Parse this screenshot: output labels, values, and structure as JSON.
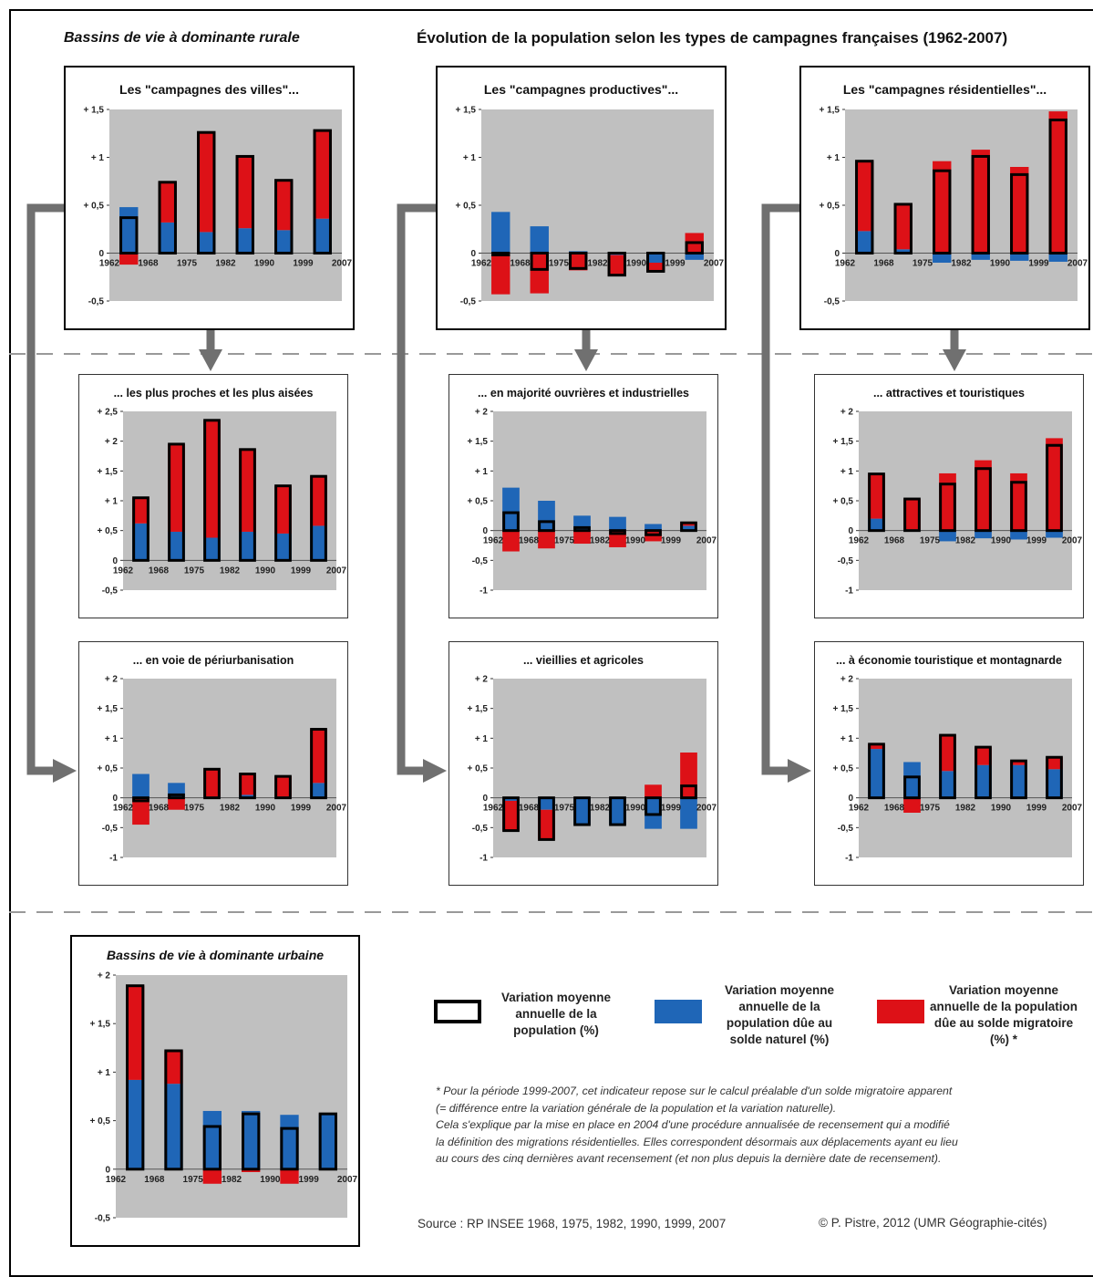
{
  "header": {
    "left": "Bassins de vie à dominante rurale",
    "center": "Évolution de la population selon les types de campagnes françaises (1962-2007)"
  },
  "colors": {
    "total_outline": "#000000",
    "naturel": "#1f66b7",
    "migratoire": "#dd1117",
    "plot_bg": "#c0c0c0"
  },
  "legend": {
    "total": "Variation moyenne annuelle de la population (%)",
    "naturel": "Variation moyenne annuelle de la population dûe au solde naturel (%)",
    "migratoire": "Variation moyenne annuelle de la population dûe au solde migratoire (%) *"
  },
  "note": [
    "* Pour la période 1999-2007, cet indicateur repose sur le calcul préalable d'un solde migratoire apparent",
    "(= différence entre la variation générale de la population et la variation naturelle).",
    "Cela s'explique par la mise en place en 2004 d'une procédure annualisée de recensement qui a modifié",
    "la définition des migrations résidentielles. Elles correspondent désormais aux déplacements ayant eu lieu",
    "au cours des cinq dernières avant recensement (et non plus depuis la dernière date de recensement)."
  ],
  "source": "Source : RP INSEE 1968, 1975, 1982, 1990, 1999, 2007",
  "credit": "© P. Pistre, 2012 (UMR Géographie-cités)",
  "chart_data": [
    {
      "type": "bar",
      "title": "Les \"campagnes des villes\"...",
      "x_labels": [
        "1962",
        "1968",
        "1975",
        "1982",
        "1990",
        "1999",
        "2007"
      ],
      "yticks": [
        "+ 1,5",
        "+ 1",
        "+ 0,5",
        "0",
        "-0,5"
      ],
      "ylim": [
        -0.5,
        1.5
      ],
      "series": [
        {
          "name": "Variation moyenne annuelle de la population (%)",
          "values": [
            0.37,
            0.74,
            1.26,
            1.01,
            0.76,
            1.28
          ]
        },
        {
          "name": "Variation moyenne annuelle de la population dûe au solde naturel (%)",
          "values": [
            0.48,
            0.32,
            0.22,
            0.26,
            0.24,
            0.36
          ]
        },
        {
          "name": "Variation moyenne annuelle de la population dûe au solde migratoire (%) *",
          "values": [
            -0.12,
            0.42,
            1.04,
            0.75,
            0.52,
            0.92
          ]
        }
      ]
    },
    {
      "type": "bar",
      "title": "Les \"campagnes productives\"...",
      "x_labels": [
        "1962",
        "1968",
        "1975",
        "1982",
        "1990",
        "1999",
        "2007"
      ],
      "yticks": [
        "+ 1,5",
        "+ 1",
        "+ 0,5",
        "0",
        "-0,5"
      ],
      "ylim": [
        -0.5,
        1.5
      ],
      "series": [
        {
          "name": "Variation moyenne annuelle de la population (%)",
          "values": [
            0.0,
            -0.17,
            -0.16,
            -0.23,
            -0.19,
            0.11
          ]
        },
        {
          "name": "Variation moyenne annuelle de la population dûe au solde naturel (%)",
          "values": [
            0.43,
            0.28,
            0.02,
            -0.02,
            -0.1,
            -0.07
          ]
        },
        {
          "name": "Variation moyenne annuelle de la population dûe au solde migratoire (%) *",
          "values": [
            -0.43,
            -0.42,
            -0.18,
            -0.21,
            -0.09,
            0.21
          ]
        }
      ]
    },
    {
      "type": "bar",
      "title": "Les \"campagnes résidentielles\"...",
      "x_labels": [
        "1962",
        "1968",
        "1975",
        "1982",
        "1990",
        "1999",
        "2007"
      ],
      "yticks": [
        "+ 1,5",
        "+ 1",
        "+ 0,5",
        "0",
        "-0,5"
      ],
      "ylim": [
        -0.5,
        1.5
      ],
      "series": [
        {
          "name": "Variation moyenne annuelle de la population (%)",
          "values": [
            0.96,
            0.51,
            0.86,
            1.01,
            0.82,
            1.39
          ]
        },
        {
          "name": "Variation moyenne annuelle de la population dûe au solde naturel (%)",
          "values": [
            0.23,
            0.04,
            -0.1,
            -0.07,
            -0.08,
            -0.09
          ]
        },
        {
          "name": "Variation moyenne annuelle de la population dûe au solde migratoire (%) *",
          "values": [
            0.73,
            0.47,
            0.96,
            1.08,
            0.9,
            1.48
          ]
        }
      ]
    },
    {
      "type": "bar",
      "title": "... les plus proches et les plus aisées",
      "x_labels": [
        "1962",
        "1968",
        "1975",
        "1982",
        "1990",
        "1999",
        "2007"
      ],
      "yticks": [
        "+ 2,5",
        "+ 2",
        "+ 1,5",
        "+ 1",
        "+ 0,5",
        "0",
        "-0,5"
      ],
      "ylim": [
        -0.5,
        2.5
      ],
      "series": [
        {
          "name": "Variation moyenne annuelle de la population (%)",
          "values": [
            1.05,
            1.95,
            2.35,
            1.86,
            1.25,
            1.41
          ]
        },
        {
          "name": "Variation moyenne annuelle de la population dûe au solde naturel (%)",
          "values": [
            0.62,
            0.48,
            0.38,
            0.48,
            0.45,
            0.58
          ]
        },
        {
          "name": "Variation moyenne annuelle de la population dûe au solde migratoire (%) *",
          "values": [
            0.43,
            1.47,
            1.97,
            1.38,
            0.8,
            0.83
          ]
        }
      ]
    },
    {
      "type": "bar",
      "title": "... en majorité ouvrières et industrielles",
      "x_labels": [
        "1962",
        "1968",
        "1975",
        "1982",
        "1990",
        "1999",
        "2007"
      ],
      "yticks": [
        "+ 2",
        "+ 1,5",
        "+ 1",
        "+ 0,5",
        "0",
        "-0,5",
        "-1"
      ],
      "ylim": [
        -1,
        2
      ],
      "series": [
        {
          "name": "Variation moyenne annuelle de la population (%)",
          "values": [
            0.3,
            0.15,
            0.05,
            -0.05,
            -0.07,
            0.13
          ]
        },
        {
          "name": "Variation moyenne annuelle de la population dûe au solde naturel (%)",
          "values": [
            0.72,
            0.5,
            0.25,
            0.23,
            0.11,
            0.08
          ]
        },
        {
          "name": "Variation moyenne annuelle de la population dûe au solde migratoire (%) *",
          "values": [
            -0.35,
            -0.3,
            -0.22,
            -0.28,
            -0.18,
            0.05
          ]
        }
      ]
    },
    {
      "type": "bar",
      "title": "... attractives et touristiques",
      "x_labels": [
        "1962",
        "1968",
        "1975",
        "1982",
        "1990",
        "1999",
        "2007"
      ],
      "yticks": [
        "+ 2",
        "+ 1,5",
        "+ 1",
        "+ 0,5",
        "0",
        "-0,5",
        "-1"
      ],
      "ylim": [
        -1,
        2
      ],
      "series": [
        {
          "name": "Variation moyenne annuelle de la population (%)",
          "values": [
            0.95,
            0.53,
            0.78,
            1.04,
            0.81,
            1.43
          ]
        },
        {
          "name": "Variation moyenne annuelle de la population dûe au solde naturel (%)",
          "values": [
            0.2,
            0.02,
            -0.18,
            -0.13,
            -0.15,
            -0.12
          ]
        },
        {
          "name": "Variation moyenne annuelle de la population dûe au solde migratoire (%) *",
          "values": [
            0.75,
            0.51,
            0.96,
            1.18,
            0.96,
            1.55
          ]
        }
      ]
    },
    {
      "type": "bar",
      "title": "... en voie de périurbanisation",
      "x_labels": [
        "1962",
        "1968",
        "1975",
        "1982",
        "1990",
        "1999",
        "2007"
      ],
      "yticks": [
        "+ 2",
        "+ 1,5",
        "+ 1",
        "+ 0,5",
        "0",
        "-0,5",
        "-1"
      ],
      "ylim": [
        -1,
        2
      ],
      "series": [
        {
          "name": "Variation moyenne annuelle de la population (%)",
          "values": [
            -0.05,
            0.05,
            0.48,
            0.4,
            0.36,
            1.15
          ]
        },
        {
          "name": "Variation moyenne annuelle de la population dûe au solde naturel (%)",
          "values": [
            0.4,
            0.25,
            0.02,
            0.05,
            0.02,
            0.25
          ]
        },
        {
          "name": "Variation moyenne annuelle de la population dûe au solde migratoire (%) *",
          "values": [
            -0.45,
            -0.2,
            0.46,
            0.35,
            0.34,
            0.9
          ]
        }
      ]
    },
    {
      "type": "bar",
      "title": "... vieillies et agricoles",
      "x_labels": [
        "1962",
        "1968",
        "1975",
        "1982",
        "1990",
        "1999",
        "2007"
      ],
      "yticks": [
        "+ 2",
        "+ 1,5",
        "+ 1",
        "+ 0,5",
        "0",
        "-0,5",
        "-1"
      ],
      "ylim": [
        -1,
        2
      ],
      "series": [
        {
          "name": "Variation moyenne annuelle de la population (%)",
          "values": [
            -0.55,
            -0.7,
            -0.45,
            -0.45,
            -0.28,
            0.2
          ]
        },
        {
          "name": "Variation moyenne annuelle de la population dûe au solde naturel (%)",
          "values": [
            -0.05,
            -0.2,
            -0.45,
            -0.45,
            -0.52,
            -0.52
          ]
        },
        {
          "name": "Variation moyenne annuelle de la population dûe au solde migratoire (%) *",
          "values": [
            -0.5,
            -0.5,
            0.0,
            0.0,
            0.22,
            0.76
          ]
        }
      ]
    },
    {
      "type": "bar",
      "title": "... à économie touristique et montagnarde",
      "x_labels": [
        "1962",
        "1968",
        "1975",
        "1982",
        "1990",
        "1999",
        "2007"
      ],
      "yticks": [
        "+ 2",
        "+ 1,5",
        "+ 1",
        "+ 0,5",
        "0",
        "-0,5",
        "-1"
      ],
      "ylim": [
        -1,
        2
      ],
      "series": [
        {
          "name": "Variation moyenne annuelle de la population (%)",
          "values": [
            0.9,
            0.35,
            1.05,
            0.85,
            0.62,
            0.68
          ]
        },
        {
          "name": "Variation moyenne annuelle de la population dûe au solde naturel (%)",
          "values": [
            0.82,
            0.6,
            0.45,
            0.55,
            0.55,
            0.48
          ]
        },
        {
          "name": "Variation moyenne annuelle de la population dûe au solde migratoire (%) *",
          "values": [
            0.08,
            -0.25,
            0.6,
            0.3,
            0.07,
            0.2
          ]
        }
      ]
    },
    {
      "type": "bar",
      "title": "Bassins de vie à dominante urbaine",
      "x_labels": [
        "1962",
        "1968",
        "1975",
        "1982",
        "1990",
        "1999",
        "2007"
      ],
      "yticks": [
        "+ 2",
        "+ 1,5",
        "+ 1",
        "+ 0,5",
        "0",
        "-0,5"
      ],
      "ylim": [
        -0.5,
        2
      ],
      "series": [
        {
          "name": "Variation moyenne annuelle de la population (%)",
          "values": [
            1.89,
            1.22,
            0.44,
            0.57,
            0.42,
            0.57
          ]
        },
        {
          "name": "Variation moyenne annuelle de la population dûe au solde naturel (%)",
          "values": [
            0.92,
            0.88,
            0.6,
            0.6,
            0.56,
            0.57
          ]
        },
        {
          "name": "Variation moyenne annuelle de la population dûe au solde migratoire (%) *",
          "values": [
            0.97,
            0.34,
            -0.15,
            -0.03,
            -0.15,
            0.0
          ]
        }
      ]
    }
  ]
}
